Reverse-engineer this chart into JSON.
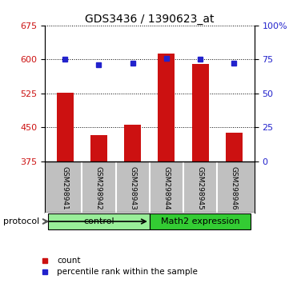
{
  "title": "GDS3436 / 1390623_at",
  "samples": [
    "GSM298941",
    "GSM298942",
    "GSM298943",
    "GSM298944",
    "GSM298945",
    "GSM298946"
  ],
  "bar_values": [
    527,
    432,
    455,
    613,
    590,
    438
  ],
  "percentile_values": [
    75,
    71,
    72,
    76,
    75,
    72
  ],
  "bar_color": "#cc1111",
  "square_color": "#2222cc",
  "ylim_left": [
    375,
    675
  ],
  "yticks_left": [
    375,
    450,
    525,
    600,
    675
  ],
  "ylim_right": [
    0,
    100
  ],
  "yticks_right": [
    0,
    25,
    50,
    75,
    100
  ],
  "groups": [
    {
      "label": "control",
      "indices": [
        0,
        1,
        2
      ],
      "color": "#99ee99"
    },
    {
      "label": "Math2 expression",
      "indices": [
        3,
        4,
        5
      ],
      "color": "#33cc33"
    }
  ],
  "protocol_label": "protocol",
  "legend_items": [
    {
      "color": "#cc1111",
      "marker": "s",
      "label": "count"
    },
    {
      "color": "#2222cc",
      "marker": "s",
      "label": "percentile rank within the sample"
    }
  ],
  "background_color": "#ffffff",
  "bar_area_bg": "#ffffff",
  "label_area_bg": "#c0c0c0",
  "title_fontsize": 10,
  "tick_fontsize": 8,
  "label_fontsize": 7.5
}
